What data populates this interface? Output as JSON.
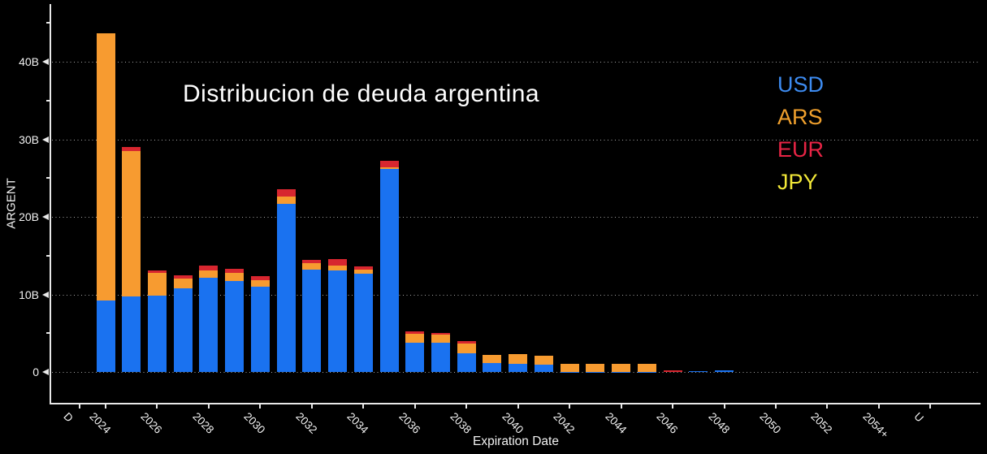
{
  "title": "Distribucion de deuda argentina",
  "axes": {
    "x_title": "Expiration Date",
    "y_title": "ARGENT"
  },
  "legend": [
    {
      "label": "USD",
      "label_color": "#3d8bf0"
    },
    {
      "label": "ARS",
      "label_color": "#f0a02d"
    },
    {
      "label": "EUR",
      "label_color": "#e82445"
    },
    {
      "label": "JPY",
      "label_color": "#f2e838"
    }
  ],
  "chart_data": {
    "type": "bar",
    "stacked": true,
    "title": "Distribucion de deuda argentina",
    "xlabel": "Expiration Date",
    "ylabel": "ARGENT",
    "unit": "billions",
    "ylim": [
      0,
      47
    ],
    "grid": "horizontal dotted",
    "legend_position": "upper right",
    "yticks_major": [
      {
        "value": 0,
        "label": "0"
      },
      {
        "value": 10,
        "label": "10B"
      },
      {
        "value": 20,
        "label": "20B"
      },
      {
        "value": 30,
        "label": "30B"
      },
      {
        "value": 40,
        "label": "40B"
      }
    ],
    "yticks_minor": [
      5,
      15,
      25,
      35,
      45
    ],
    "x_ticks": [
      {
        "label": "D",
        "year": 2023
      },
      {
        "label": "2024",
        "year": 2024
      },
      {
        "label": "2026",
        "year": 2026
      },
      {
        "label": "2028",
        "year": 2028
      },
      {
        "label": "2030",
        "year": 2030
      },
      {
        "label": "2032",
        "year": 2032
      },
      {
        "label": "2034",
        "year": 2034
      },
      {
        "label": "2036",
        "year": 2036
      },
      {
        "label": "2038",
        "year": 2038
      },
      {
        "label": "2040",
        "year": 2040
      },
      {
        "label": "2042",
        "year": 2042
      },
      {
        "label": "2044",
        "year": 2044
      },
      {
        "label": "2046",
        "year": 2046
      },
      {
        "label": "2048",
        "year": 2048
      },
      {
        "label": "2050",
        "year": 2050
      },
      {
        "label": "2052",
        "year": 2052
      },
      {
        "label": "2054+",
        "year": 2054
      },
      {
        "label": "U",
        "year": 2056
      }
    ],
    "categories": [
      2024,
      2025,
      2026,
      2027,
      2028,
      2029,
      2030,
      2031,
      2032,
      2033,
      2034,
      2035,
      2036,
      2037,
      2038,
      2039,
      2040,
      2041,
      2042,
      2043,
      2044,
      2045,
      2046,
      2047,
      2048
    ],
    "series": [
      {
        "name": "USD",
        "color": "#1a72f0",
        "values": [
          9.2,
          9.7,
          9.8,
          10.8,
          12.1,
          11.7,
          11.0,
          21.7,
          13.2,
          13.1,
          12.7,
          26.2,
          3.8,
          3.8,
          2.4,
          1.1,
          1.0,
          0.9,
          0.05,
          0.05,
          0.05,
          0.05,
          0,
          0.1,
          0.2
        ]
      },
      {
        "name": "ARS",
        "color": "#f79b30",
        "values": [
          34.5,
          18.8,
          2.95,
          1.2,
          1.0,
          1.05,
          0.8,
          0.95,
          0.8,
          0.65,
          0.5,
          0.2,
          1.1,
          1.0,
          1.3,
          1.1,
          1.3,
          1.2,
          1.0,
          1.0,
          0.95,
          1.0,
          0,
          0,
          0
        ]
      },
      {
        "name": "EUR",
        "color": "#d7262f",
        "values": [
          0,
          0.5,
          0.35,
          0.45,
          0.6,
          0.55,
          0.6,
          0.95,
          0.45,
          0.85,
          0.4,
          0.85,
          0.3,
          0.25,
          0.25,
          0,
          0,
          0,
          0,
          0,
          0,
          0,
          0.2,
          0,
          0
        ]
      },
      {
        "name": "JPY",
        "color": "#f2e838",
        "values": [
          0,
          0,
          0,
          0,
          0,
          0,
          0,
          0,
          0,
          0,
          0,
          0,
          0,
          0,
          0,
          0,
          0,
          0,
          0,
          0,
          0,
          0,
          0,
          0,
          0
        ]
      }
    ]
  }
}
